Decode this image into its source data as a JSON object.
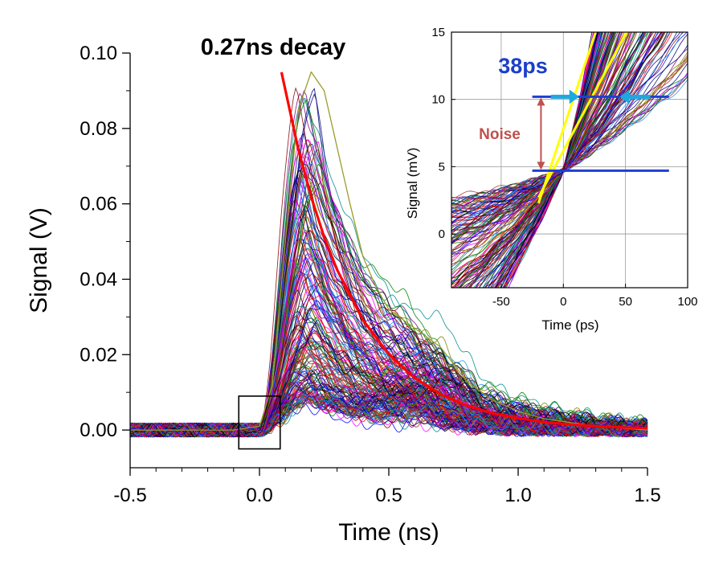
{
  "chart_data": [
    {
      "type": "line",
      "title": "0.27ns decay",
      "xlabel": "Time (ns)",
      "ylabel": "Signal (V)",
      "xlim": [
        -0.5,
        1.5
      ],
      "ylim": [
        -0.01,
        0.1
      ],
      "xticks": [
        -0.5,
        0.0,
        0.5,
        1.0,
        1.5
      ],
      "xtick_labels": [
        "-0.5",
        "0.0",
        "0.5",
        "1.0",
        "1.5"
      ],
      "yticks": [
        0.0,
        0.02,
        0.04,
        0.06,
        0.08,
        0.1
      ],
      "ytick_labels": [
        "0.00",
        "0.02",
        "0.04",
        "0.06",
        "0.08",
        "0.10"
      ],
      "ensemble": {
        "description_count": 180,
        "onset_time_ns": 0.0,
        "peak_time_range_ns": [
          0.14,
          0.24
        ],
        "peak_amplitude_range_V": [
          0.008,
          0.095
        ],
        "baseline_V": 0.0,
        "colors": [
          "#000080",
          "#8b0000",
          "#008000",
          "#ff00ff",
          "#1e90ff",
          "#808000",
          "#000000",
          "#ff0000",
          "#800080",
          "#008b8b",
          "#0000ff",
          "#a52a2a"
        ]
      },
      "series": [
        {
          "name": "exponential decay fit",
          "color": "#ff0000",
          "x": [
            0.085,
            0.15,
            0.2,
            0.25,
            0.3,
            0.4,
            0.5,
            0.6,
            0.7,
            0.8,
            0.9,
            1.0,
            1.1,
            1.2,
            1.3,
            1.4,
            1.5
          ],
          "y": [
            0.0949,
            0.0745,
            0.0618,
            0.0512,
            0.0425,
            0.0292,
            0.0201,
            0.0138,
            0.0095,
            0.0065,
            0.0045,
            0.0031,
            0.0021,
            0.0015,
            0.001,
            0.0007,
            0.0005
          ]
        },
        {
          "name": "outlier trace",
          "color": "#9c9c2a",
          "x": [
            -0.5,
            -0.1,
            0.0,
            0.05,
            0.1,
            0.15,
            0.2,
            0.25,
            0.3,
            0.35,
            0.4,
            0.45,
            0.5,
            0.6,
            0.7,
            0.8,
            0.9,
            1.0,
            1.1,
            1.2,
            1.3,
            1.5
          ],
          "y": [
            0.0,
            0.0,
            0.001,
            0.012,
            0.05,
            0.085,
            0.095,
            0.09,
            0.075,
            0.06,
            0.046,
            0.038,
            0.032,
            0.027,
            0.022,
            0.013,
            0.008,
            0.005,
            0.003,
            0.002,
            0.001,
            0.0
          ]
        }
      ],
      "zoom_box": {
        "x_range": [
          -0.08,
          0.08
        ],
        "y_range": [
          -0.005,
          0.009
        ]
      }
    },
    {
      "type": "line",
      "title": "",
      "xlabel": "Time (ps)",
      "ylabel": "Signal (mV)",
      "xlim": [
        -90,
        100
      ],
      "ylim": [
        -4,
        15
      ],
      "xticks": [
        -50,
        0,
        50,
        100
      ],
      "xtick_labels": [
        "-50",
        "0",
        "50",
        "100"
      ],
      "yticks": [
        0,
        5,
        10,
        15
      ],
      "ytick_labels": [
        "0",
        "5",
        "10",
        "15"
      ],
      "grid": true,
      "crossing_point": {
        "x": 0,
        "y": 4.7
      },
      "slope_range_mV_per_ps": [
        0.055,
        0.4
      ],
      "noise_level_mV": [
        4.7,
        10.2
      ],
      "jitter_window_ps": [
        10,
        48
      ],
      "annotations": {
        "jitter_label": "38ps",
        "noise_label": "Noise"
      },
      "colors": {
        "jitter_text": "#1a3fc9",
        "noise_text": "#c0504d",
        "marker_lines": "#1f3fd0",
        "arrows_cyan": "#1ea8e0",
        "extreme_slopes": "#ffff00"
      }
    }
  ]
}
